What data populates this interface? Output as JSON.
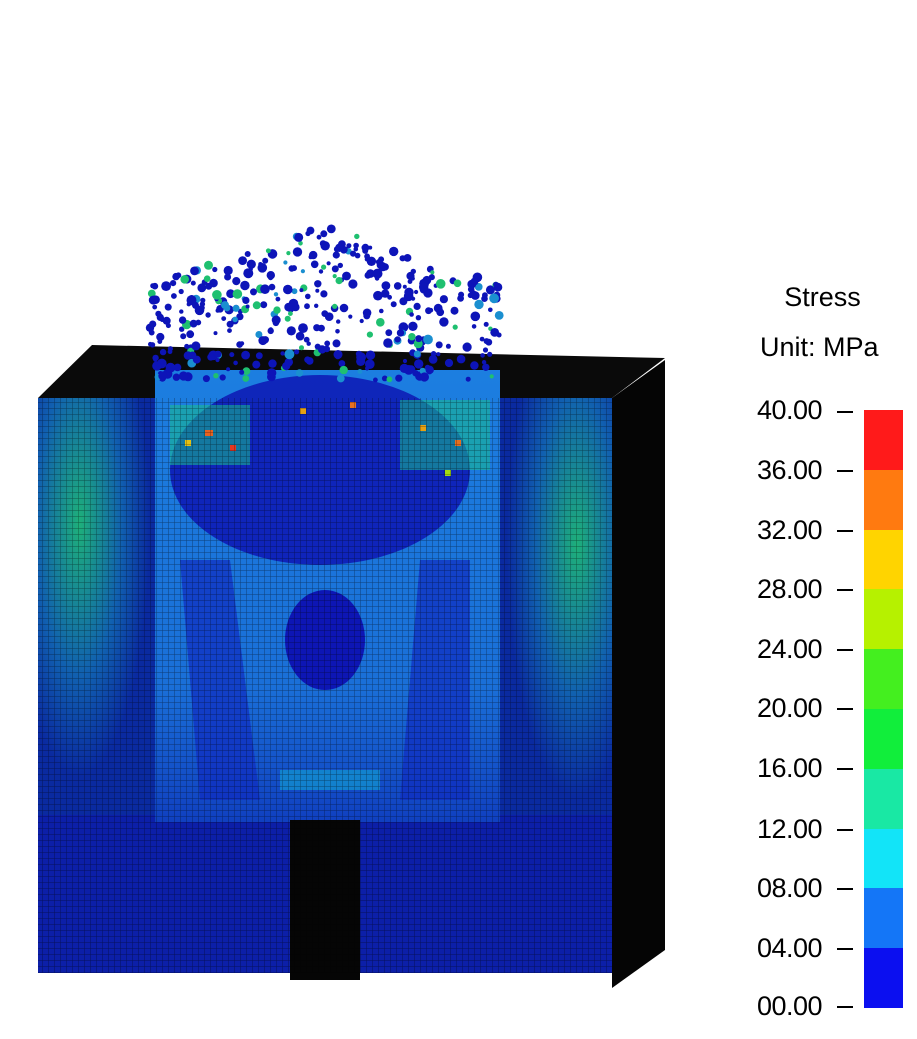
{
  "legend": {
    "title": "Stress",
    "unit": "Unit: MPa",
    "ticks": [
      "40.00",
      "36.00",
      "32.00",
      "28.00",
      "24.00",
      "20.00",
      "16.00",
      "12.00",
      "08.00",
      "04.00",
      "00.00"
    ],
    "bands_top_to_bottom": [
      "#ff1a1a",
      "#ff7a10",
      "#ffd400",
      "#b6f100",
      "#44ef1f",
      "#11ee3b",
      "#19e8a4",
      "#12e4f8",
      "#1476f7",
      "#0b0ff0"
    ]
  }
}
